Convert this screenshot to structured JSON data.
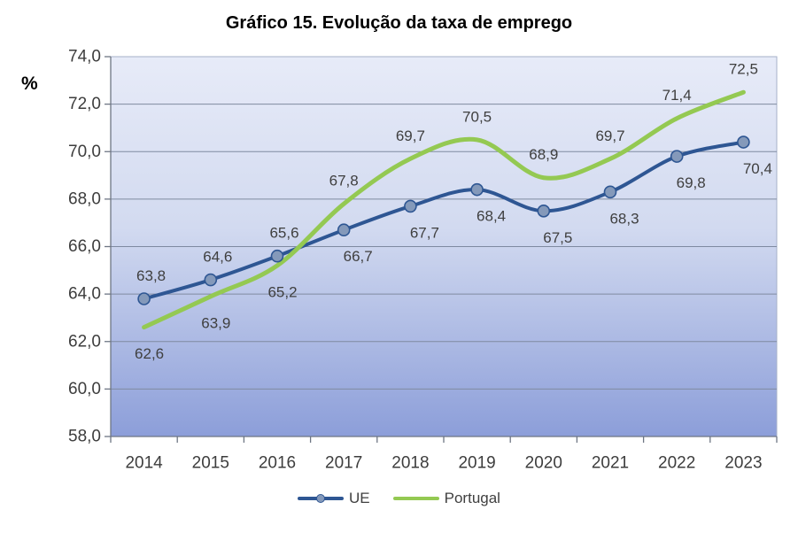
{
  "chart_data": {
    "type": "line",
    "title": "Gráfico 15. Evolução da taxa de emprego",
    "ylabel": "%",
    "xlabel": "",
    "categories": [
      "2014",
      "2015",
      "2016",
      "2017",
      "2018",
      "2019",
      "2020",
      "2021",
      "2022",
      "2023"
    ],
    "series": [
      {
        "name": "UE",
        "color": "#2e5693",
        "marker_fill": "#8499ba",
        "markers": true,
        "smooth": true,
        "values": [
          63.8,
          64.6,
          65.6,
          66.7,
          67.7,
          68.4,
          67.5,
          68.3,
          69.8,
          70.4
        ],
        "label_side": [
          "above",
          "above",
          "above",
          "below",
          "below",
          "below",
          "below",
          "below",
          "below",
          "below"
        ]
      },
      {
        "name": "Portugal",
        "color": "#94c952",
        "marker_fill": null,
        "markers": false,
        "smooth": true,
        "values": [
          62.6,
          63.9,
          65.2,
          67.8,
          69.7,
          70.5,
          68.9,
          69.7,
          71.4,
          72.5
        ],
        "label_side": [
          "below",
          "below",
          "below",
          "above",
          "above",
          "above",
          "above",
          "above",
          "above",
          "above"
        ]
      }
    ],
    "ylim": [
      58,
      74
    ],
    "ytick_step": 2,
    "ytick_format": "decimal-comma-1",
    "grid": "horizontal",
    "legend_position": "bottom",
    "plot_bg_gradient": {
      "top": "#e7ebf8",
      "mid": "#d2daf0",
      "bottom": "#8c9ed9"
    },
    "plot_border_color": "#a6b0c9",
    "gridline_color": "#7f8aa0",
    "axis_color": "#6e7684",
    "tick_label_color": "#3d3d3d",
    "data_label_color": "#3f3f3f"
  }
}
